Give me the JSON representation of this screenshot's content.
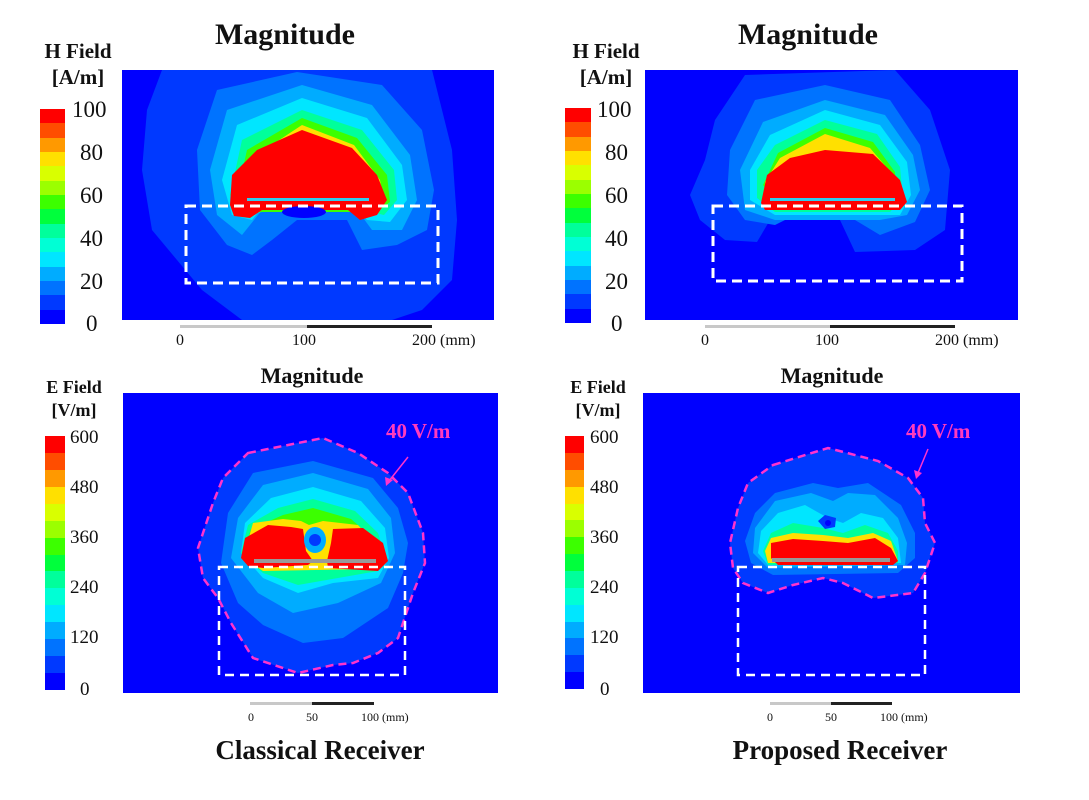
{
  "colormap": [
    "#0000ff",
    "#0039ff",
    "#0073ff",
    "#00acff",
    "#00e6ff",
    "#00ffd5",
    "#00ff9b",
    "#00ff3c",
    "#3cff00",
    "#9bff00",
    "#d9ff00",
    "#ffe000",
    "#ff9900",
    "#ff4d00",
    "#ff0000"
  ],
  "colors": {
    "dashed_box": "#ffffff",
    "contour_40": "#ff33cc",
    "annotation": "#ff3bbd",
    "conductor": "#999999"
  },
  "panels": {
    "h_classical": {
      "title": "Magnitude",
      "colorbar": {
        "title_line1": "H Field",
        "title_line2": "[A/m]",
        "ticks": [
          "100",
          "80",
          "60",
          "40",
          "20",
          "0"
        ],
        "min": 0,
        "max": 100,
        "levels": 15
      },
      "scalebar": {
        "labels": [
          "0",
          "100",
          "200 (mm)"
        ]
      }
    },
    "h_proposed": {
      "title": "Magnitude",
      "colorbar": {
        "title_line1": "H Field",
        "title_line2": "[A/m]",
        "ticks": [
          "100",
          "80",
          "60",
          "40",
          "20",
          "0"
        ],
        "min": 0,
        "max": 100,
        "levels": 15
      },
      "scalebar": {
        "labels": [
          "0",
          "100",
          "200 (mm)"
        ]
      }
    },
    "e_classical": {
      "title": "Magnitude",
      "colorbar": {
        "title_line1": "E Field",
        "title_line2": "[V/m]",
        "ticks": [
          "600",
          "480",
          "360",
          "240",
          "120",
          "0"
        ],
        "min": 0,
        "max": 600,
        "levels": 15
      },
      "annotation": "40 V/m",
      "scalebar": {
        "labels": [
          "0",
          "50",
          "100 (mm)"
        ]
      }
    },
    "e_proposed": {
      "title": "Magnitude",
      "colorbar": {
        "title_line1": "E Field",
        "title_line2": "[V/m]",
        "ticks": [
          "600",
          "480",
          "360",
          "240",
          "120",
          "0"
        ],
        "min": 0,
        "max": 600,
        "levels": 15
      },
      "annotation": "40 V/m",
      "scalebar": {
        "labels": [
          "0",
          "50",
          "100 (mm)"
        ]
      }
    }
  },
  "footer": {
    "left": "Classical Receiver",
    "right": "Proposed Receiver"
  }
}
